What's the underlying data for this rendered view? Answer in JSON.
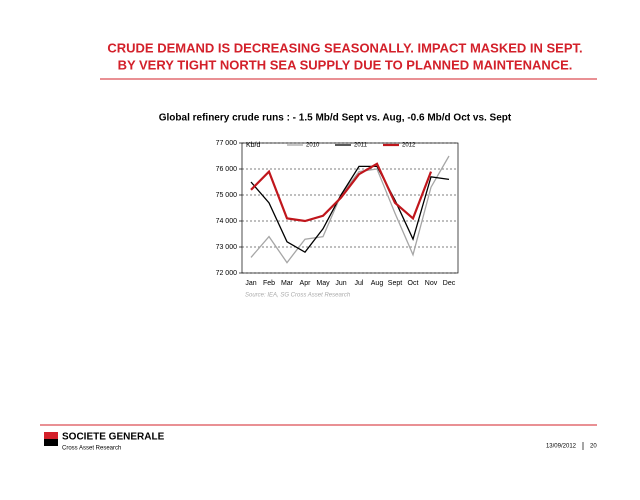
{
  "slide": {
    "heading": [
      "CRUDE DEMAND IS DECREASING SEASONALLY.  IMPACT MASKED IN SEPT.",
      "BY VERY TIGHT NORTH SEA SUPPLY DUE TO PLANNED MAINTENANCE."
    ],
    "brand": "SOCIETE GENERALE",
    "subbrand": "Cross Asset Research",
    "date": "13/09/2012",
    "page": "20"
  },
  "chart_data": {
    "type": "line",
    "title": "Global refinery crude runs : - 1.5 Mb/d Sept vs. Aug, -0.6 Mb/d Oct vs. Sept",
    "ylabel": "Kb/d",
    "source": "Source: IEA, SG Cross Asset Research",
    "categories": [
      "Jan",
      "Feb",
      "Mar",
      "Apr",
      "May",
      "Jun",
      "Jul",
      "Aug",
      "Sept",
      "Oct",
      "Nov",
      "Dec"
    ],
    "series": [
      {
        "name": "2010",
        "color": "#a6a6a6",
        "values": [
          72600,
          73400,
          72400,
          73300,
          73400,
          75000,
          75900,
          76000,
          74300,
          72700,
          75300,
          76500
        ]
      },
      {
        "name": "2011",
        "color": "#000000",
        "values": [
          75500,
          74700,
          73200,
          72800,
          73700,
          75000,
          76100,
          76100,
          74800,
          73300,
          75700,
          75600
        ]
      },
      {
        "name": "2012",
        "color": "#c0161c",
        "values": [
          75200,
          75900,
          74100,
          74000,
          74200,
          74900,
          75800,
          76200,
          74700,
          74100,
          75900,
          null
        ]
      }
    ],
    "ylim": [
      72000,
      77000
    ],
    "yticks": [
      {
        "value": 72000,
        "label": "72 000"
      },
      {
        "value": 73000,
        "label": "73 000"
      },
      {
        "value": 74000,
        "label": "74 000"
      },
      {
        "value": 75000,
        "label": "75 000"
      },
      {
        "value": 76000,
        "label": "76 000"
      },
      {
        "value": 77000,
        "label": "77 000"
      }
    ],
    "grid": true,
    "legend": "top"
  }
}
